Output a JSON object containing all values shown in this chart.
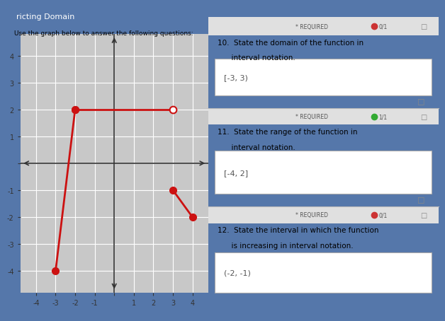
{
  "title": "ricting Domain",
  "subtitle": "Use the graph below to answer the following questions:",
  "graph_bg": "#c8c8c8",
  "blue_header": "#4a6fa5",
  "line_color": "#cc1111",
  "line_width": 2.0,
  "segments": [
    {
      "x": [
        -3,
        -2
      ],
      "y": [
        -4,
        2
      ],
      "start_open": false,
      "end_open": false
    },
    {
      "x": [
        -2,
        3
      ],
      "y": [
        2,
        2
      ],
      "start_open": false,
      "end_open": true
    },
    {
      "x": [
        3,
        4
      ],
      "y": [
        -1,
        -2
      ],
      "start_open": false,
      "end_open": false
    }
  ],
  "xlim": [
    -4.8,
    4.8
  ],
  "ylim": [
    -4.8,
    4.8
  ],
  "xticks": [
    -4,
    -3,
    -2,
    -1,
    0,
    1,
    2,
    3,
    4
  ],
  "yticks": [
    -4,
    -3,
    -2,
    -1,
    0,
    1,
    2,
    3,
    4
  ],
  "marker_size": 7,
  "q10_answer": "[-3, 3)",
  "q11_answer": "[-4, 2]",
  "q12_answer": "(-2, -1)"
}
